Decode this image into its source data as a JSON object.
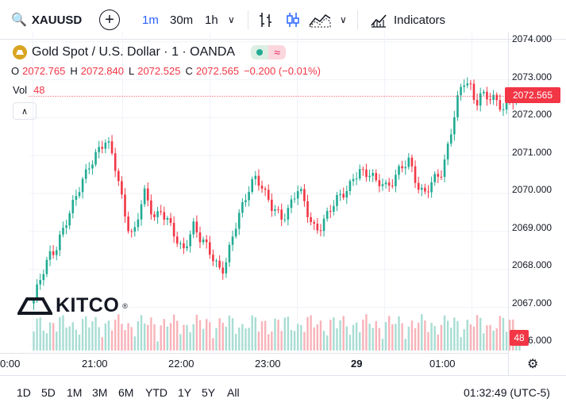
{
  "toolbar": {
    "symbol": "XAUUSD",
    "add_icon": "plus-circle-icon",
    "timeframes": [
      "1m",
      "30m",
      "1h"
    ],
    "active_timeframe": "1m",
    "indicators_label": "Indicators"
  },
  "legend": {
    "title": "Gold Spot / U.S. Dollar · 1 · OANDA",
    "o_label": "O",
    "o_value": "2072.765",
    "h_label": "H",
    "h_value": "2072.840",
    "l_label": "L",
    "l_value": "2072.525",
    "c_label": "C",
    "c_value": "2072.565",
    "change": "−0.200 (−0.01%)",
    "vol_label": "Vol",
    "vol_value": "48"
  },
  "watermark": {
    "text": "KITCO",
    "mark": "®"
  },
  "price_axis": {
    "labels": [
      "2074.000",
      "2073.000",
      "2072.000",
      "2071.000",
      "2070.000",
      "2069.000",
      "2068.000",
      "2067.000",
      "2066.000"
    ],
    "current": "2072.565",
    "volume_badge": "48"
  },
  "time_axis": {
    "labels": [
      "0:00",
      "21:00",
      "22:00",
      "23:00",
      "29",
      "01:00"
    ]
  },
  "bottom": {
    "ranges": [
      "1D",
      "5D",
      "1M",
      "3M",
      "6M",
      "YTD",
      "1Y",
      "5Y",
      "All"
    ],
    "clock": "01:32:49 (UTC-5)"
  },
  "colors": {
    "up": "#22ab94",
    "down": "#f23645",
    "accent": "#2962ff"
  },
  "chart_data": {
    "type": "candlestick",
    "series_close": [
      2067.2,
      2067.6,
      2068.0,
      2068.4,
      2068.6,
      2069.0,
      2069.3,
      2069.6,
      2070.0,
      2070.4,
      2070.8,
      2071.0,
      2071.2,
      2071.3,
      2071.1,
      2070.6,
      2069.9,
      2069.2,
      2068.8,
      2069.4,
      2070.0,
      2069.7,
      2069.4,
      2069.6,
      2069.3,
      2069.0,
      2068.7,
      2068.5,
      2068.9,
      2069.2,
      2068.8,
      2068.6,
      2068.4,
      2068.2,
      2068.0,
      2068.3,
      2068.8,
      2069.3,
      2069.7,
      2070.2,
      2070.5,
      2070.3,
      2069.9,
      2069.6,
      2069.5,
      2069.4,
      2069.6,
      2069.9,
      2070.1,
      2069.7,
      2069.3,
      2069.1,
      2069.2,
      2069.4,
      2069.6,
      2069.8,
      2070.0,
      2070.2,
      2070.5,
      2070.6,
      2070.4,
      2070.5,
      2070.3,
      2070.4,
      2070.2,
      2070.3,
      2070.5,
      2070.7,
      2070.9,
      2070.5,
      2070.1,
      2070.0,
      2070.2,
      2070.4,
      2070.6,
      2071.3,
      2072.0,
      2072.6,
      2072.9,
      2072.8,
      2072.4,
      2072.7,
      2072.6,
      2072.5,
      2072.3,
      2072.2,
      2072.5,
      2072.6,
      2072.565
    ],
    "ylim": [
      2065.9,
      2074.1
    ],
    "y_ticks": [
      2066,
      2067,
      2068,
      2069,
      2070,
      2071,
      2072,
      2073,
      2074
    ]
  }
}
